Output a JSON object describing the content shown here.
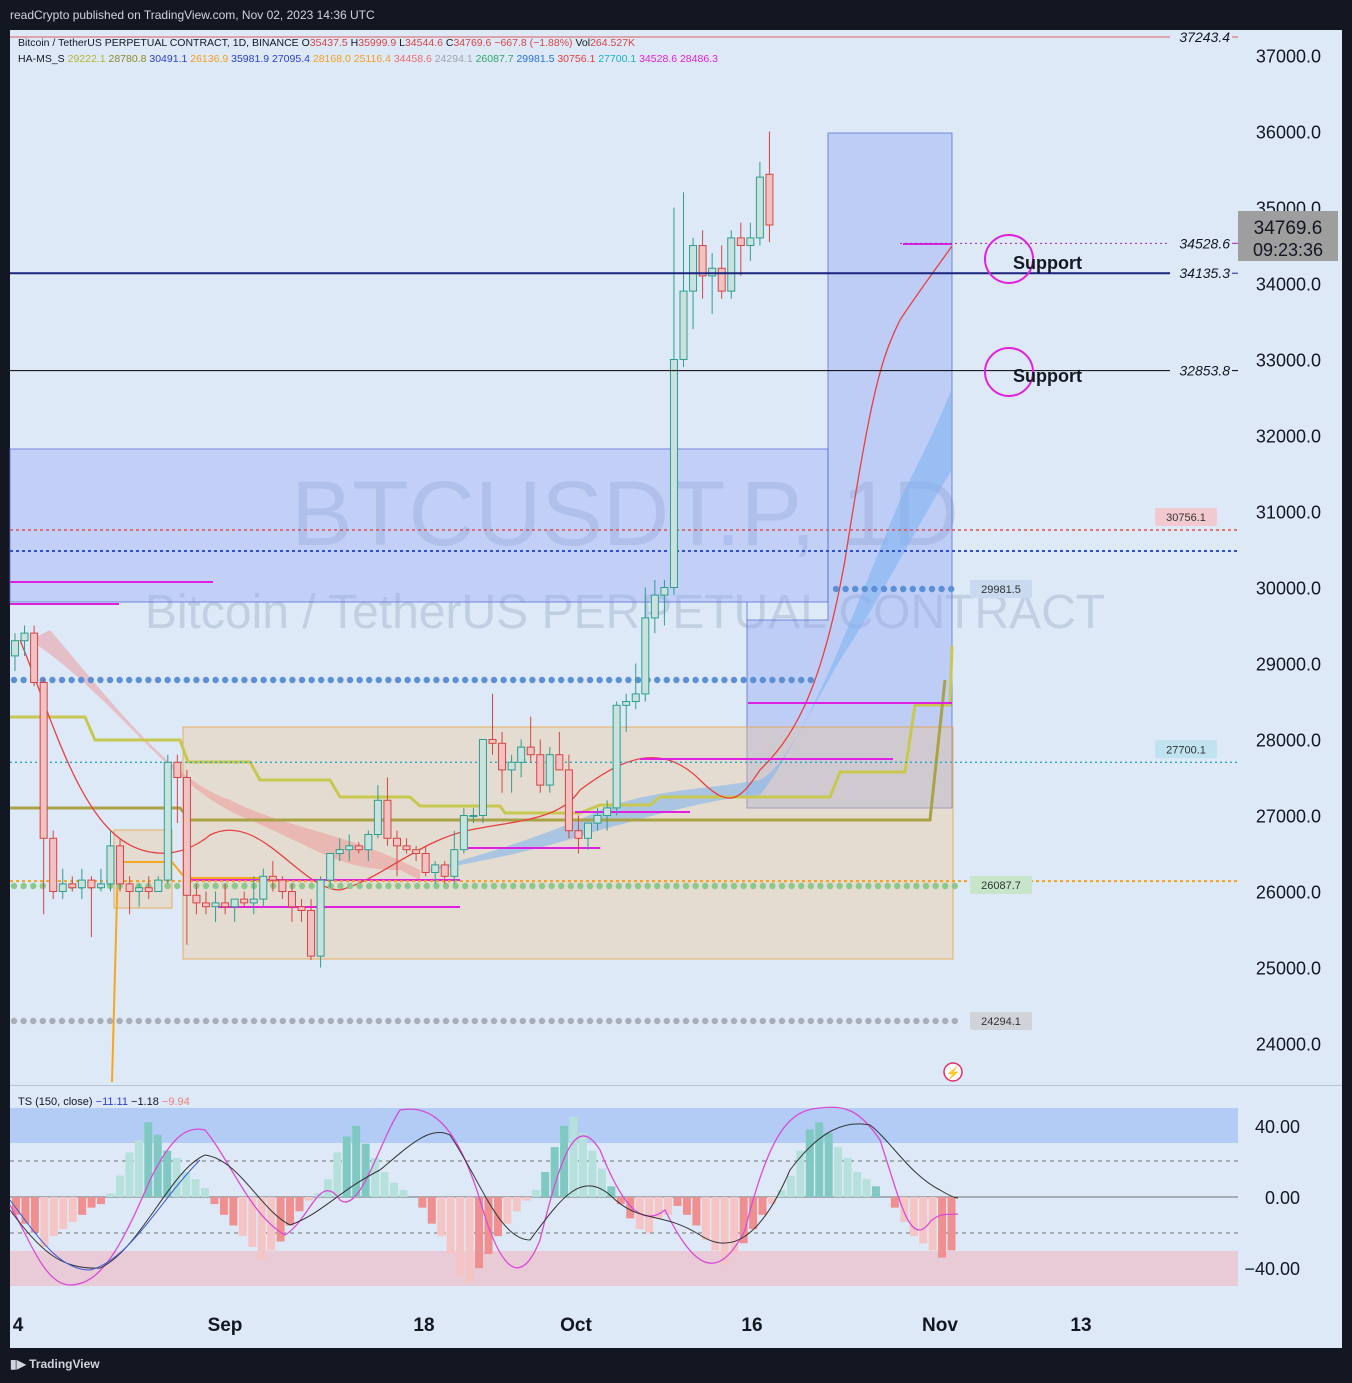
{
  "publish_line": "readCrypto published on TradingView.com, Nov 02, 2023 14:36 UTC",
  "footer_logo": "TradingView",
  "watermark": {
    "symbol": "BTCUSDT.P, 1D",
    "name": "Bitcoin / TetherUS PERPETUAL CONTRACT"
  },
  "legend": {
    "symbol": "Bitcoin / TetherUS PERPETUAL CONTRACT, 1D, BINANCE",
    "ohlc": [
      {
        "k": "O",
        "v": "35437.5"
      },
      {
        "k": "H",
        "v": "35999.9"
      },
      {
        "k": "L",
        "v": "34544.6"
      },
      {
        "k": "C",
        "v": "34769.6"
      },
      {
        "k": "",
        "v": "−667.8 (−1.88%)"
      },
      {
        "k": "Vol",
        "v": "264.527K"
      }
    ],
    "indicator_name": "HA-MS_S",
    "indicator_values": [
      {
        "v": "29222.1",
        "color": "#b5b530"
      },
      {
        "v": "28780.8",
        "color": "#8a8a2a"
      },
      {
        "v": "30491.1",
        "color": "#2a3fd0"
      },
      {
        "v": "26136.9",
        "color": "#f59f1f"
      },
      {
        "v": "35981.9",
        "color": "#2a3fd0"
      },
      {
        "v": "27095.4",
        "color": "#2a3fd0"
      },
      {
        "v": "28168.0",
        "color": "#f59f1f"
      },
      {
        "v": "25116.4",
        "color": "#f59f1f"
      },
      {
        "v": "34458.6",
        "color": "#ef6b6b"
      },
      {
        "v": "24294.1",
        "color": "#a0a4ad"
      },
      {
        "v": "26087.7",
        "color": "#2ea86b"
      },
      {
        "v": "29981.5",
        "color": "#2a6fe0"
      },
      {
        "v": "30756.1",
        "color": "#e04040"
      },
      {
        "v": "27700.1",
        "color": "#1ab0c8"
      },
      {
        "v": "34528.6",
        "color": "#e020e0"
      },
      {
        "v": "28486.3",
        "color": "#e020e0"
      }
    ]
  },
  "price_axis": {
    "labels": [
      "37000.0",
      "36000.0",
      "35000.0",
      "34000.0",
      "33000.0",
      "32000.0",
      "31000.0",
      "30000.0",
      "29000.0",
      "28000.0",
      "27000.0",
      "26000.0",
      "25000.0",
      "24000.0"
    ],
    "current_price": "34769.6",
    "countdown": "09:23:36"
  },
  "date_axis": {
    "labels": [
      "4",
      "Sep",
      "18",
      "Oct",
      "16",
      "Nov",
      "13"
    ]
  },
  "levels": [
    {
      "label": "37243.4",
      "price": 37243.4,
      "color": "#e06060"
    },
    {
      "label": "34528.6",
      "price": 34528.6,
      "color": "#9c27b0"
    },
    {
      "label": "34135.3",
      "price": 34135.3,
      "color": "#1a237e"
    },
    {
      "label": "32853.8",
      "price": 32853.8,
      "color": "#000000"
    }
  ],
  "dot_labels": [
    {
      "label": "30756.1",
      "price": 30756.1,
      "bg": "#f2c9cf"
    },
    {
      "label": "29981.5",
      "price": 29981.5,
      "bg": "#c9d9ef"
    },
    {
      "label": "27700.1",
      "price": 27700.1,
      "bg": "#bfe3f0"
    },
    {
      "label": "26087.7",
      "price": 26087.7,
      "bg": "#c7e5c9"
    },
    {
      "label": "24294.1",
      "price": 24294.1,
      "bg": "#d0d3d9"
    }
  ],
  "annotations": [
    {
      "text": "Support",
      "price": 34135.3
    },
    {
      "text": "Support",
      "price": 32853.8
    }
  ],
  "oscillator": {
    "title": "TS (150, close)",
    "values": [
      {
        "v": "−11.11",
        "color": "#2a3fd0"
      },
      {
        "v": "−1.18",
        "color": "#131722"
      },
      {
        "v": "−9.94",
        "color": "#ef8080"
      }
    ],
    "axis_labels": [
      "40.00",
      "0.00",
      "−40.00"
    ]
  },
  "chart_data": {
    "type": "candlestick",
    "symbol": "BTCUSDT.P",
    "timeframe": "1D",
    "exchange": "BINANCE",
    "start_date": "2023-08-03",
    "candles": [
      [
        29100,
        29400,
        28900,
        29300
      ],
      [
        29300,
        29500,
        29100,
        29400
      ],
      [
        29400,
        29500,
        28700,
        28750
      ],
      [
        28750,
        28800,
        25700,
        26700
      ],
      [
        26700,
        26800,
        25900,
        26000
      ],
      [
        26000,
        26300,
        25900,
        26100
      ],
      [
        26100,
        26200,
        26000,
        26050
      ],
      [
        26050,
        26300,
        25900,
        26150
      ],
      [
        26150,
        26200,
        25400,
        26050
      ],
      [
        26050,
        26300,
        26000,
        26100
      ],
      [
        26100,
        26800,
        26000,
        26600
      ],
      [
        26600,
        26700,
        26000,
        26100
      ],
      [
        26100,
        26200,
        25700,
        26000
      ],
      [
        26000,
        26100,
        25800,
        26050
      ],
      [
        26050,
        26200,
        25900,
        26000
      ],
      [
        26000,
        26200,
        26000,
        26150
      ],
      [
        26150,
        27800,
        26100,
        27700
      ],
      [
        27700,
        27800,
        26900,
        27500
      ],
      [
        27500,
        27600,
        25300,
        25950
      ],
      [
        25950,
        26100,
        25700,
        25850
      ],
      [
        25850,
        26000,
        25700,
        25800
      ],
      [
        25800,
        26000,
        25600,
        25850
      ],
      [
        25850,
        26100,
        25700,
        25800
      ],
      [
        25800,
        25900,
        25600,
        25900
      ],
      [
        25900,
        26000,
        25800,
        25850
      ],
      [
        25850,
        26200,
        25700,
        25900
      ],
      [
        25900,
        26300,
        25800,
        26200
      ],
      [
        26200,
        26400,
        26000,
        26150
      ],
      [
        26150,
        26200,
        25900,
        26000
      ],
      [
        26000,
        26100,
        25600,
        25800
      ],
      [
        25800,
        25900,
        25600,
        25750
      ],
      [
        25750,
        25900,
        25100,
        25150
      ],
      [
        25150,
        26200,
        25000,
        26150
      ],
      [
        26150,
        26500,
        26050,
        26500
      ],
      [
        26500,
        26700,
        26400,
        26550
      ],
      [
        26550,
        26750,
        26400,
        26600
      ],
      [
        26600,
        26650,
        26500,
        26550
      ],
      [
        26550,
        26800,
        26400,
        26750
      ],
      [
        26750,
        27400,
        26700,
        27200
      ],
      [
        27200,
        27500,
        26600,
        26700
      ],
      [
        26700,
        26800,
        26200,
        26600
      ],
      [
        26600,
        26700,
        26500,
        26550
      ],
      [
        26550,
        26600,
        26400,
        26500
      ],
      [
        26500,
        26600,
        26200,
        26250
      ],
      [
        26250,
        26400,
        26100,
        26350
      ],
      [
        26350,
        26400,
        26100,
        26200
      ],
      [
        26200,
        26800,
        26100,
        26550
      ],
      [
        26550,
        27100,
        26500,
        27000
      ],
      [
        27000,
        27100,
        26900,
        27000
      ],
      [
        27000,
        28000,
        26900,
        28000
      ],
      [
        28000,
        28600,
        27800,
        27950
      ],
      [
        27950,
        28100,
        27300,
        27600
      ],
      [
        27600,
        27800,
        27300,
        27700
      ],
      [
        27700,
        28000,
        27500,
        27900
      ],
      [
        27900,
        28300,
        27700,
        27800
      ],
      [
        27800,
        28000,
        27300,
        27400
      ],
      [
        27400,
        27900,
        27300,
        27800
      ],
      [
        27800,
        28100,
        27600,
        27600
      ],
      [
        27600,
        27800,
        26700,
        26800
      ],
      [
        26800,
        27000,
        26500,
        26700
      ],
      [
        26700,
        26900,
        26550,
        26900
      ],
      [
        26900,
        27100,
        26800,
        27000
      ],
      [
        27000,
        27200,
        26800,
        27100
      ],
      [
        27100,
        28500,
        27000,
        28450
      ],
      [
        28450,
        28600,
        28100,
        28500
      ],
      [
        28500,
        29000,
        28400,
        28600
      ],
      [
        28600,
        30000,
        28500,
        29600
      ],
      [
        29600,
        30100,
        29400,
        29900
      ],
      [
        29900,
        30100,
        29500,
        30000
      ],
      [
        30000,
        35000,
        29900,
        33000
      ],
      [
        33000,
        35200,
        32900,
        33900
      ],
      [
        33900,
        34600,
        33400,
        34500
      ],
      [
        34500,
        34700,
        33800,
        34100
      ],
      [
        34100,
        34400,
        33600,
        34200
      ],
      [
        34200,
        34500,
        33800,
        33900
      ],
      [
        33900,
        34700,
        33800,
        34600
      ],
      [
        34600,
        34800,
        34100,
        34500
      ],
      [
        34500,
        34800,
        34300,
        34600
      ],
      [
        34600,
        35600,
        34500,
        35400
      ],
      [
        35437.5,
        35999.9,
        34544.6,
        34769.6
      ]
    ],
    "levels": [
      37243.4,
      34528.6,
      34135.3,
      32853.8
    ],
    "dotted_levels": [
      30756.1,
      29981.5,
      27700.1,
      26087.7,
      24294.1
    ],
    "y_range": [
      23500,
      37400
    ],
    "oscillator_range": [
      -50,
      50
    ]
  }
}
